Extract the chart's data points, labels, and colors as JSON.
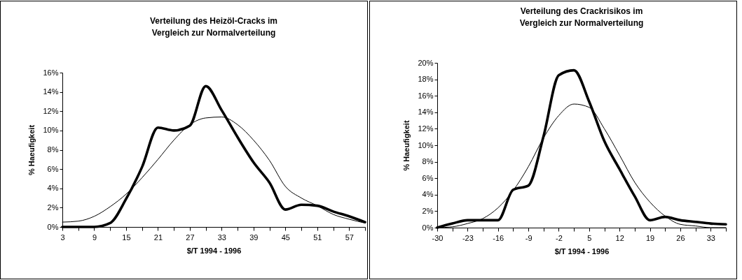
{
  "chart_data": [
    {
      "type": "line",
      "title": "Verteilung des Heizöl-Cracks im\nVergleich zur Normalverteilung",
      "xlabel": "$/T 1994 - 1996",
      "ylabel": "% Haeufigkeit",
      "x": [
        3,
        6,
        9,
        12,
        15,
        18,
        21,
        24,
        27,
        30,
        33,
        36,
        39,
        42,
        45,
        48,
        51,
        54,
        57,
        60
      ],
      "series": [
        {
          "color": "#000000",
          "values": [
            0,
            0,
            0,
            0.4,
            2.9,
            6.2,
            10.3,
            10.0,
            10.5,
            14.6,
            12.1,
            9.3,
            6.7,
            4.6,
            1.8,
            2.3,
            2.2,
            1.6,
            1.1,
            0.5
          ]
        },
        {
          "color": "#000000",
          "values": [
            0.5,
            0.6,
            1.1,
            2.1,
            3.4,
            5.1,
            7.0,
            9.0,
            10.6,
            11.3,
            11.4,
            10.6,
            9.0,
            6.9,
            4.2,
            3.0,
            2.2,
            1.3,
            0.8,
            0.4
          ]
        }
      ],
      "xlim": [
        3,
        60
      ],
      "xticks": [
        3,
        {
          "value": 6,
          "label": null
        },
        9,
        {
          "value": 12,
          "label": null
        },
        15,
        {
          "value": 18,
          "label": null
        },
        21,
        {
          "value": 24,
          "label": null
        },
        27,
        {
          "value": 30,
          "label": null
        },
        33,
        {
          "value": 36,
          "label": null
        },
        39,
        {
          "value": 42,
          "label": null
        },
        45,
        {
          "value": 48,
          "label": null
        },
        51,
        {
          "value": 54,
          "label": null
        },
        57,
        {
          "value": 60,
          "label": null
        }
      ],
      "ylim": [
        0,
        16
      ],
      "yticks": [
        {
          "value": 0,
          "label": "0%"
        },
        {
          "value": 2,
          "label": "2%"
        },
        {
          "value": 4,
          "label": "4%"
        },
        {
          "value": 6,
          "label": "6%"
        },
        {
          "value": 8,
          "label": "8%"
        },
        {
          "value": 10,
          "label": "10%"
        },
        {
          "value": 12,
          "label": "12%"
        },
        {
          "value": 14,
          "label": "14%"
        },
        {
          "value": 16,
          "label": "16%"
        }
      ],
      "line_style": "solid"
    },
    {
      "type": "line",
      "title": "Verteilung des Crackrisikos im\nVergleich zur Normalverteilung",
      "xlabel": "$/T 1994 - 1996",
      "ylabel": "% Haeufigkeit",
      "x": [
        -30,
        -26.5,
        -23,
        -19.5,
        -16,
        -12.5,
        -9,
        -5.5,
        -2,
        1.5,
        5,
        8.5,
        12,
        15.5,
        19,
        22.5,
        26,
        29.5,
        33,
        36.5
      ],
      "series": [
        {
          "color": "#000000",
          "values": [
            0,
            0.5,
            0.9,
            0.9,
            0.9,
            4.6,
            5.1,
            11.1,
            18.5,
            19.1,
            15.3,
            10.5,
            7.1,
            3.8,
            0.9,
            1.3,
            0.9,
            0.7,
            0.5,
            0.4
          ]
        },
        {
          "color": "#000000",
          "values": [
            0,
            0.1,
            0.5,
            1.1,
            2.4,
            4.5,
            7.4,
            10.9,
            13.6,
            15.0,
            14.6,
            12.0,
            8.8,
            5.5,
            3.1,
            1.4,
            0.4,
            0.2,
            0,
            0
          ]
        }
      ],
      "xlim": [
        -30,
        36.5
      ],
      "xticks": [
        -30,
        {
          "value": -26.5,
          "label": null
        },
        -23,
        {
          "value": -19.5,
          "label": null
        },
        -16,
        {
          "value": -12.5,
          "label": null
        },
        -9,
        {
          "value": -5.5,
          "label": null
        },
        -2,
        {
          "value": 1.5,
          "label": null
        },
        5,
        {
          "value": 8.5,
          "label": null
        },
        12,
        {
          "value": 15.5,
          "label": null
        },
        19,
        {
          "value": 22.5,
          "label": null
        },
        26,
        {
          "value": 29.5,
          "label": null
        },
        33,
        {
          "value": 36.5,
          "label": null
        }
      ],
      "ylim": [
        0,
        20
      ],
      "yticks": [
        {
          "value": 0,
          "label": "0%"
        },
        {
          "value": 2,
          "label": "2%"
        },
        {
          "value": 4,
          "label": "4%"
        },
        {
          "value": 6,
          "label": "6%"
        },
        {
          "value": 8,
          "label": "8%"
        },
        {
          "value": 10,
          "label": "10%"
        },
        {
          "value": 12,
          "label": "12%"
        },
        {
          "value": 14,
          "label": "14%"
        },
        {
          "value": 16,
          "label": "16%"
        },
        {
          "value": 18,
          "label": "18%"
        },
        {
          "value": 20,
          "label": "20%"
        }
      ],
      "line_style": "solid"
    }
  ]
}
